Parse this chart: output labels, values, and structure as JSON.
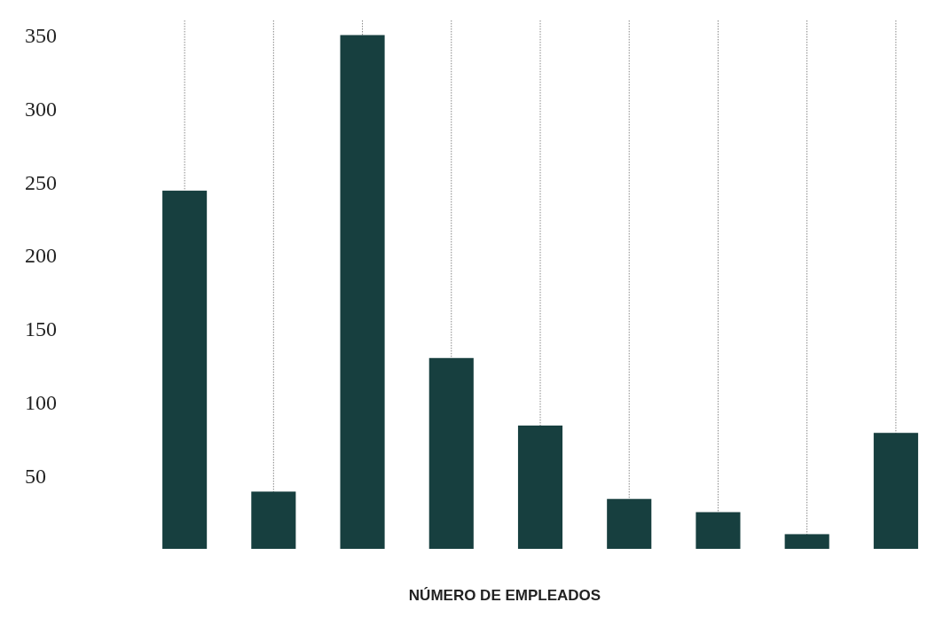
{
  "chart_data": {
    "type": "bar",
    "xlabel": "NÚMERO DE EMPLEADOS",
    "categories": [
      null,
      null,
      null,
      null,
      null,
      null,
      null,
      null,
      null
    ],
    "values": [
      244,
      39,
      350,
      130,
      84,
      34,
      25,
      10,
      79
    ],
    "color": "#173f3f",
    "ylim": [
      0,
      360
    ],
    "yticks": [
      50,
      100,
      150,
      200,
      250,
      300,
      350
    ],
    "grid": "x"
  }
}
